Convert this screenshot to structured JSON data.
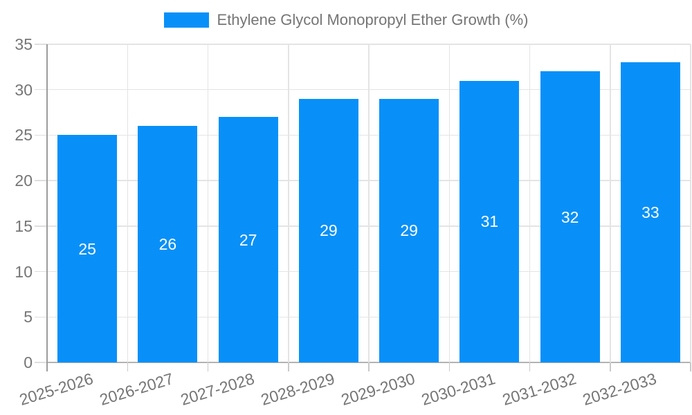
{
  "legend": {
    "label": "Ethylene Glycol Monopropyl Ether Growth (%)",
    "swatch_color": "#0890f8"
  },
  "chart_data": {
    "type": "bar",
    "title": "Ethylene Glycol Monopropyl Ether Growth (%)",
    "categories": [
      "2025-2026",
      "2026-2027",
      "2027-2028",
      "2028-2029",
      "2029-2030",
      "2030-2031",
      "2031-2032",
      "2032-2033"
    ],
    "values": [
      25,
      26,
      27,
      29,
      29,
      31,
      32,
      33
    ],
    "bar_labels": [
      "25",
      "26",
      "27",
      "29",
      "29",
      "31",
      "32",
      "33"
    ],
    "xlabel": "",
    "ylabel": "",
    "ylim": [
      0,
      35
    ],
    "yticks": [
      0,
      5,
      10,
      15,
      20,
      25,
      30,
      35
    ],
    "grid": true,
    "legend_position": "top-center",
    "colors": {
      "bar": "#0890f8",
      "bar_label_text": "#ffffff",
      "axis_text": "#757575",
      "gridline": "#e4e4e4",
      "axis_line": "#9c9c9c",
      "baseline": "#b2b2b2"
    }
  }
}
